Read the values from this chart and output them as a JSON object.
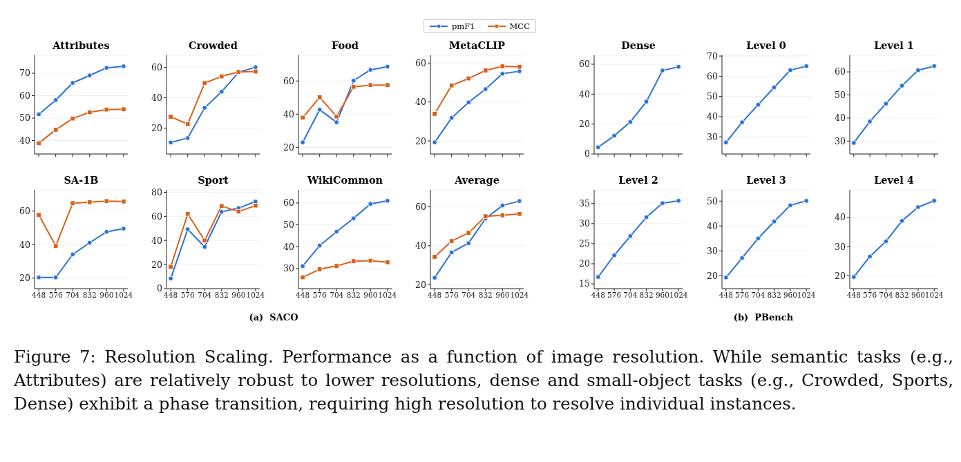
{
  "chart_data": [
    {
      "type": "line",
      "title": "Attributes",
      "categories": [
        "448",
        "576",
        "704",
        "832",
        "960",
        "1024"
      ],
      "ylim": [
        34,
        78
      ],
      "yticks": [
        40,
        50,
        60,
        70
      ],
      "grid": "y",
      "tick_labels": "y",
      "legend": "top",
      "line_style": "solid",
      "annotations": [
        "(a)  SACO",
        "Figure 7: Resolution Scaling. Performance as a function of image resolution. While semantic tasks (e.g., Attributes) are relatively robust to lower resolutions, dense and small-object tasks (e.g., Crowded, Sports, Dense) exhibit a phase transition, requiring high resolution to resolve individual instances."
      ],
      "series": [
        {
          "name": "pmF1",
          "color": "#2a72d8",
          "marker": "circle",
          "values": [
            51.7,
            58,
            65.7,
            69,
            72.4,
            73.1
          ]
        },
        {
          "name": "MCC",
          "color": "#d9601a",
          "marker": "square",
          "values": [
            38.8,
            44.8,
            49.8,
            52.6,
            53.8,
            53.9
          ]
        }
      ]
    },
    {
      "type": "line",
      "title": "Crowded",
      "categories": [
        "448",
        "576",
        "704",
        "832",
        "960",
        "1024"
      ],
      "ylim": [
        3,
        68
      ],
      "yticks": [
        20,
        40,
        60
      ],
      "grid": "y",
      "tick_labels": "y",
      "line_style": "solid",
      "series": [
        {
          "color": "#2a72d8",
          "marker": "circle",
          "values": [
            10.6,
            13.5,
            33.4,
            44,
            56.8,
            60.1
          ]
        },
        {
          "color": "#d9601a",
          "marker": "square",
          "values": [
            27.5,
            22.7,
            49.7,
            54.1,
            57,
            57.3
          ]
        }
      ]
    },
    {
      "type": "line",
      "title": "Food",
      "categories": [
        "448",
        "576",
        "704",
        "832",
        "960",
        "1024"
      ],
      "ylim": [
        16,
        75.5
      ],
      "yticks": [
        20,
        40,
        60
      ],
      "grid": "y",
      "tick_labels": "y",
      "line_style": "solid",
      "series": [
        {
          "color": "#2a72d8",
          "marker": "circle",
          "values": [
            23,
            42.7,
            35.1,
            60.2,
            66.7,
            68.6
          ]
        },
        {
          "color": "#d9601a",
          "marker": "square",
          "values": [
            37.9,
            50.2,
            38.6,
            56.5,
            57.5,
            57.5
          ]
        }
      ]
    },
    {
      "type": "line",
      "title": "MetaCLIP",
      "categories": [
        "448",
        "576",
        "704",
        "832",
        "960",
        "1024"
      ],
      "ylim": [
        13.3,
        64
      ],
      "yticks": [
        20,
        40,
        60
      ],
      "grid": "y",
      "tick_labels": "y",
      "line_style": "solid",
      "series": [
        {
          "color": "#2a72d8",
          "marker": "circle",
          "values": [
            19.3,
            31.8,
            39.8,
            46.6,
            54.5,
            55.8
          ]
        },
        {
          "color": "#d9601a",
          "marker": "square",
          "values": [
            33.9,
            48.5,
            52.1,
            56.2,
            58.3,
            58.1
          ]
        }
      ]
    },
    {
      "type": "line",
      "title": "SA-1B",
      "categories": [
        "448",
        "576",
        "704",
        "832",
        "960",
        "1024"
      ],
      "ylim": [
        13.7,
        72.6
      ],
      "yticks": [
        20,
        40,
        60
      ],
      "grid": "y",
      "line_style": "solid",
      "series": [
        {
          "color": "#2a72d8",
          "marker": "circle",
          "values": [
            20.4,
            20.4,
            34.1,
            41.1,
            47.6,
            49.5
          ]
        },
        {
          "color": "#d9601a",
          "marker": "square",
          "values": [
            57.7,
            39.2,
            64.7,
            65.3,
            65.9,
            65.7
          ]
        }
      ]
    },
    {
      "type": "line",
      "title": "Sport",
      "categories": [
        "448",
        "576",
        "704",
        "832",
        "960",
        "1024"
      ],
      "ylim": [
        0,
        82
      ],
      "yticks": [
        0,
        20,
        40,
        60,
        80
      ],
      "grid": "y",
      "line_style": "solid",
      "series": [
        {
          "color": "#2a72d8",
          "marker": "circle",
          "values": [
            8.4,
            49.3,
            34.7,
            63.8,
            66.9,
            72.4
          ]
        },
        {
          "color": "#d9601a",
          "marker": "square",
          "values": [
            18.1,
            62.1,
            40,
            68.6,
            64,
            69
          ]
        }
      ]
    },
    {
      "type": "line",
      "title": "WikiCommon",
      "categories": [
        "448",
        "576",
        "704",
        "832",
        "960",
        "1024"
      ],
      "ylim": [
        20.8,
        66
      ],
      "yticks": [
        30,
        40,
        50,
        60
      ],
      "grid": "y",
      "line_style": "solid",
      "series": [
        {
          "color": "#2a72d8",
          "marker": "circle",
          "values": [
            31.1,
            40.5,
            46.9,
            53,
            59.6,
            61
          ]
        },
        {
          "color": "#d9601a",
          "marker": "square",
          "values": [
            26,
            29.7,
            31.2,
            33.4,
            33.6,
            32.9
          ]
        }
      ]
    },
    {
      "type": "line",
      "title": "Average",
      "categories": [
        "448",
        "576",
        "704",
        "832",
        "960",
        "1024"
      ],
      "ylim": [
        18,
        68.6
      ],
      "yticks": [
        20,
        40,
        60
      ],
      "grid": "y",
      "line_style": "solid",
      "series": [
        {
          "color": "#2a72d8",
          "marker": "circle",
          "values": [
            23.6,
            36.6,
            41.3,
            53.9,
            60.6,
            62.9
          ]
        },
        {
          "color": "#d9601a",
          "marker": "square",
          "values": [
            34.3,
            42.4,
            46.6,
            55.1,
            55.6,
            56.3
          ]
        }
      ]
    },
    {
      "type": "line",
      "title": "Dense",
      "categories": [
        "448",
        "576",
        "704",
        "832",
        "960",
        "1024"
      ],
      "ylim": [
        0,
        66
      ],
      "yticks": [
        0,
        20,
        40,
        60
      ],
      "grid": "y",
      "tick_labels": "y",
      "line_style": "solid",
      "annotations": [
        "(b)  PBench"
      ],
      "series": [
        {
          "color": "#2a72d8",
          "marker": "circle",
          "values": [
            4.5,
            12.2,
            21.4,
            35,
            55.8,
            58.3
          ]
        }
      ]
    },
    {
      "type": "line",
      "title": "Level 0",
      "categories": [
        "448",
        "576",
        "704",
        "832",
        "960",
        "1024"
      ],
      "ylim": [
        21.5,
        70.4
      ],
      "yticks": [
        30,
        40,
        50,
        60,
        70
      ],
      "grid": "y",
      "tick_labels": "y",
      "line_style": "solid",
      "series": [
        {
          "color": "#2a72d8",
          "marker": "circle",
          "values": [
            27.2,
            37.2,
            45.9,
            54.5,
            63,
            65
          ]
        }
      ]
    },
    {
      "type": "line",
      "title": "Level 1",
      "categories": [
        "448",
        "576",
        "704",
        "832",
        "960",
        "1024"
      ],
      "ylim": [
        24.4,
        67.2
      ],
      "yticks": [
        30,
        40,
        50,
        60
      ],
      "grid": "y",
      "tick_labels": "y",
      "line_style": "solid",
      "series": [
        {
          "color": "#2a72d8",
          "marker": "circle",
          "values": [
            29.2,
            38.5,
            46.2,
            54,
            60.7,
            62.5
          ]
        }
      ]
    },
    {
      "type": "line",
      "title": "Level 2",
      "categories": [
        "448",
        "576",
        "704",
        "832",
        "960",
        "1024"
      ],
      "ylim": [
        13.8,
        38.4
      ],
      "yticks": [
        15,
        20,
        25,
        30,
        35
      ],
      "grid": "y",
      "line_style": "solid",
      "series": [
        {
          "color": "#2a72d8",
          "marker": "circle",
          "values": [
            16.7,
            22.1,
            26.9,
            31.6,
            35.1,
            35.7
          ]
        }
      ]
    },
    {
      "type": "line",
      "title": "Level 3",
      "categories": [
        "448",
        "576",
        "704",
        "832",
        "960",
        "1024"
      ],
      "ylim": [
        14.8,
        54.5
      ],
      "yticks": [
        20,
        30,
        40,
        50
      ],
      "grid": "y",
      "line_style": "solid",
      "series": [
        {
          "color": "#2a72d8",
          "marker": "circle",
          "values": [
            19.3,
            27.1,
            35,
            41.8,
            48.3,
            50.1
          ]
        }
      ]
    },
    {
      "type": "line",
      "title": "Level 4",
      "categories": [
        "448",
        "576",
        "704",
        "832",
        "960",
        "1024"
      ],
      "ylim": [
        15.6,
        49.4
      ],
      "yticks": [
        20,
        30,
        40
      ],
      "grid": "y",
      "line_style": "solid",
      "series": [
        {
          "color": "#2a72d8",
          "marker": "circle",
          "values": [
            19.6,
            26.6,
            31.8,
            38.8,
            43.5,
            45.7
          ]
        }
      ]
    }
  ]
}
